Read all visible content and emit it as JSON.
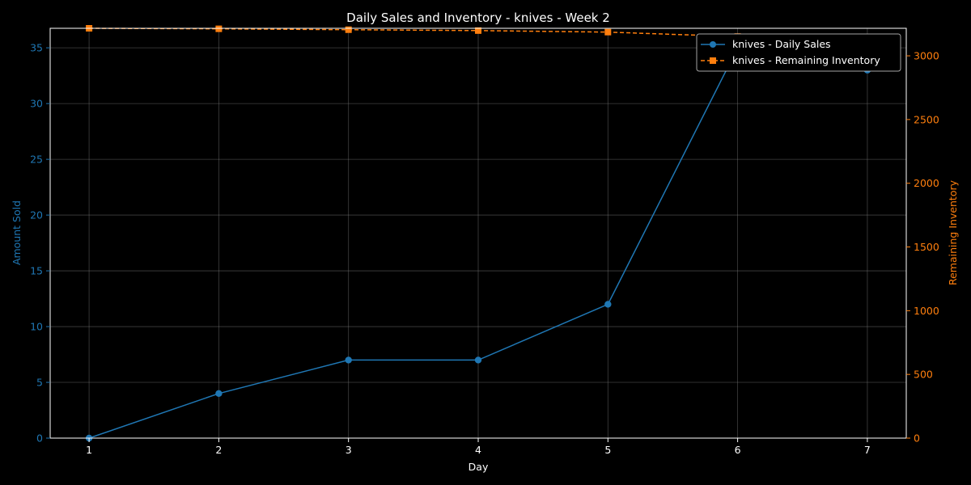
{
  "chart_data": {
    "type": "line",
    "title": "Daily Sales and Inventory - knives - Week 2",
    "xlabel": "Day",
    "ylabel": "Amount Sold",
    "y2label": "Remaining Inventory",
    "x": [
      1,
      2,
      3,
      4,
      5,
      6,
      7
    ],
    "xlim": [
      0.7,
      7.3
    ],
    "ylim": [
      0,
      36.75
    ],
    "y2lim": [
      0,
      3216
    ],
    "yticks": [
      0,
      5,
      10,
      15,
      20,
      25,
      30,
      35
    ],
    "y2ticks": [
      0,
      500,
      1000,
      1500,
      2000,
      2500,
      3000
    ],
    "grid": true,
    "legend_position": "top-right",
    "series": [
      {
        "name": "knives - Daily Sales",
        "axis": "left",
        "color": "#1f77b4",
        "marker": "circle",
        "style": "solid",
        "values": [
          0,
          4,
          7,
          7,
          12,
          35,
          33
        ]
      },
      {
        "name": "knives - Remaining Inventory",
        "axis": "right",
        "color": "#ff7f0e",
        "marker": "square",
        "style": "dashed",
        "values": [
          3216,
          3212,
          3205,
          3198,
          3186,
          3151,
          3118
        ]
      }
    ]
  }
}
